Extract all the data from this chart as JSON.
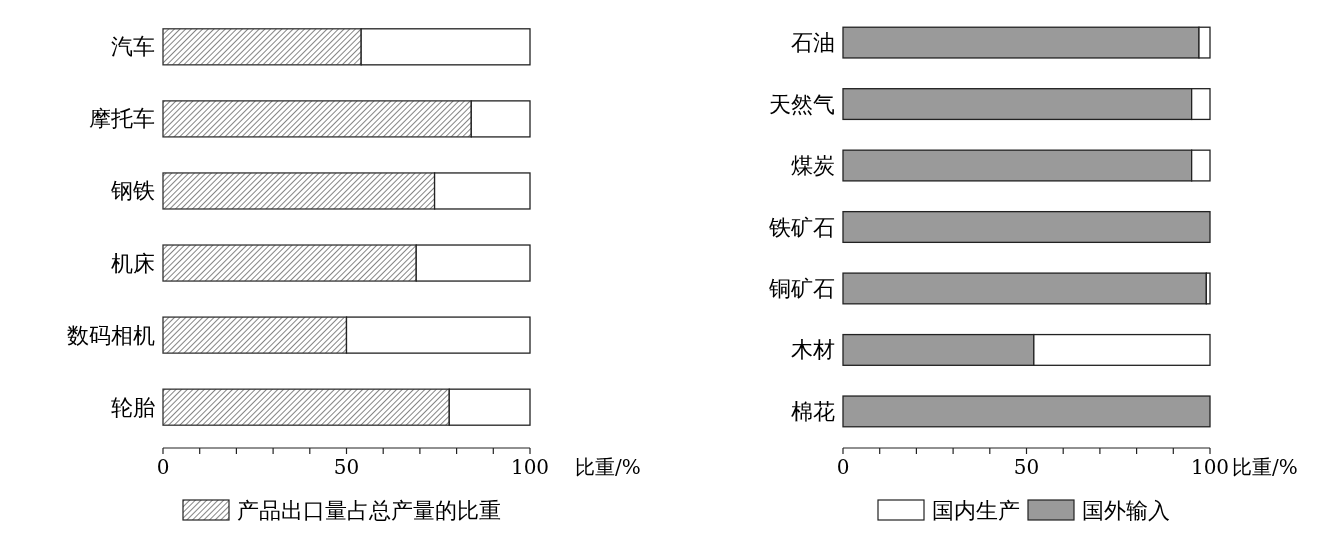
{
  "chart_data": [
    {
      "type": "bar",
      "orientation": "horizontal",
      "stacked": true,
      "categories": [
        "汽车",
        "摩托车",
        "钢铁",
        "机床",
        "数码相机",
        "轮胎"
      ],
      "xlabel": "比重/%",
      "xlim": [
        0,
        100
      ],
      "xticks": [
        0,
        {
          "value": 10,
          "label": null
        },
        {
          "value": 20,
          "label": null
        },
        {
          "value": 30,
          "label": null
        },
        {
          "value": 40,
          "label": null
        },
        50,
        {
          "value": 60,
          "label": null
        },
        {
          "value": 70,
          "label": null
        },
        {
          "value": 80,
          "label": null
        },
        {
          "value": 90,
          "label": null
        },
        100
      ],
      "legend": "bottom",
      "series": [
        {
          "name": "产品出口量占总产量的比重",
          "color": "#333333",
          "values": [
            54,
            84,
            74,
            69,
            50,
            78
          ]
        },
        {
          "color": "#ffffff",
          "values": [
            46,
            16,
            26,
            31,
            50,
            22
          ]
        }
      ]
    },
    {
      "type": "bar",
      "orientation": "horizontal",
      "stacked": true,
      "categories": [
        "石油",
        "天然气",
        "煤炭",
        "铁矿石",
        "铜矿石",
        "木材",
        "棉花"
      ],
      "xlabel": "比重/%",
      "xlim": [
        0,
        100
      ],
      "xticks": [
        0,
        {
          "value": 10,
          "label": null
        },
        {
          "value": 20,
          "label": null
        },
        {
          "value": 30,
          "label": null
        },
        {
          "value": 40,
          "label": null
        },
        50,
        {
          "value": 60,
          "label": null
        },
        {
          "value": 70,
          "label": null
        },
        {
          "value": 80,
          "label": null
        },
        {
          "value": 90,
          "label": null
        },
        100
      ],
      "legend": "bottom",
      "series": [
        {
          "name": "国外输入",
          "color": "#9a9a9a",
          "values": [
            97,
            95,
            95,
            100,
            99,
            52,
            100
          ]
        },
        {
          "name": "国内生产",
          "color": "#ffffff",
          "values": [
            3,
            5,
            5,
            0,
            1,
            48,
            0
          ]
        }
      ]
    }
  ]
}
